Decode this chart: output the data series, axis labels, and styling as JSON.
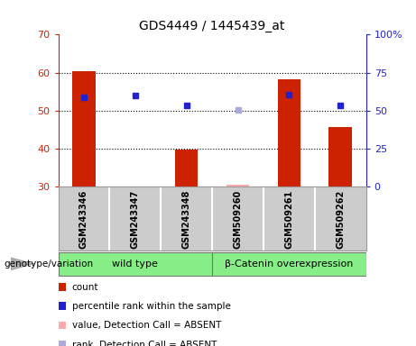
{
  "title": "GDS4449 / 1445439_at",
  "samples": [
    "GSM243346",
    "GSM243347",
    "GSM243348",
    "GSM509260",
    "GSM509261",
    "GSM509262"
  ],
  "bar_values": [
    60.3,
    null,
    39.8,
    null,
    58.2,
    45.8
  ],
  "bar_values_absent": [
    null,
    null,
    null,
    30.5,
    null,
    null
  ],
  "rank_values": [
    53.5,
    54.0,
    51.3,
    null,
    54.2,
    51.5
  ],
  "rank_values_absent": [
    null,
    null,
    null,
    50.2,
    null,
    null
  ],
  "bar_bottom": 30,
  "ylim_left": [
    30,
    70
  ],
  "ylim_right": [
    0,
    100
  ],
  "yticks_left": [
    30,
    40,
    50,
    60,
    70
  ],
  "yticks_right": [
    0,
    25,
    50,
    75,
    100
  ],
  "yticklabels_right": [
    "0",
    "25",
    "50",
    "75",
    "100%"
  ],
  "bar_color": "#cc2200",
  "bar_color_absent": "#ffaaaa",
  "rank_color": "#2222cc",
  "rank_color_absent": "#aaaadd",
  "background_plot": "#ffffff",
  "background_tick_section": "#cccccc",
  "background_group": "#88ee88",
  "group_labels": [
    "wild type",
    "β-Catenin overexpression"
  ],
  "group_ranges": [
    [
      0,
      3
    ],
    [
      3,
      6
    ]
  ],
  "bar_width": 0.45,
  "title_fontsize": 10,
  "tick_fontsize": 8,
  "grid_color": "#000000",
  "legend_items": [
    {
      "label": "count",
      "color": "#cc2200"
    },
    {
      "label": "percentile rank within the sample",
      "color": "#2222cc"
    },
    {
      "label": "value, Detection Call = ABSENT",
      "color": "#ffaaaa"
    },
    {
      "label": "rank, Detection Call = ABSENT",
      "color": "#aaaadd"
    }
  ]
}
